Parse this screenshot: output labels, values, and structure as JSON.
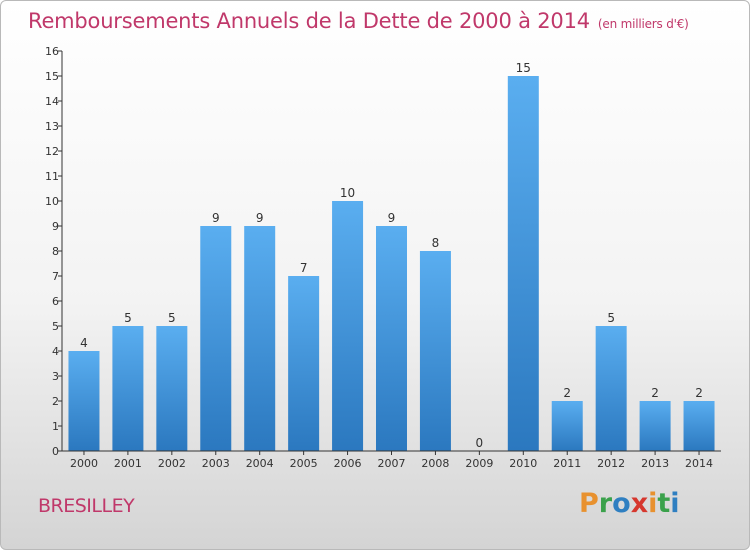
{
  "header": {
    "title": "Remboursements Annuels de la Dette de 2000 à 2014",
    "subtitle": "(en milliers d'€)"
  },
  "commune": "BRESILLEY",
  "brand": {
    "letters": [
      "P",
      "r",
      "o",
      "x",
      "i",
      "t",
      "i"
    ],
    "colors": [
      "#e8912e",
      "#3aa14b",
      "#2f7fc1",
      "#d6372e",
      "#e8912e",
      "#3aa14b",
      "#2f7fc1"
    ]
  },
  "chart_data": {
    "type": "bar",
    "categories": [
      "2000",
      "2001",
      "2002",
      "2003",
      "2004",
      "2005",
      "2006",
      "2007",
      "2008",
      "2009",
      "2010",
      "2011",
      "2012",
      "2013",
      "2014"
    ],
    "values": [
      4,
      5,
      5,
      9,
      9,
      7,
      10,
      9,
      8,
      0,
      15,
      2,
      5,
      2,
      2
    ],
    "ylim": [
      0,
      16
    ],
    "yticks": [
      0,
      1,
      2,
      3,
      4,
      5,
      6,
      7,
      8,
      9,
      10,
      11,
      12,
      13,
      14,
      15,
      16
    ],
    "grid": false,
    "colors": {
      "bar_light": "#5aaef0",
      "bar_dark": "#2b78bf",
      "axis": "#333333",
      "text": "#333333"
    }
  }
}
